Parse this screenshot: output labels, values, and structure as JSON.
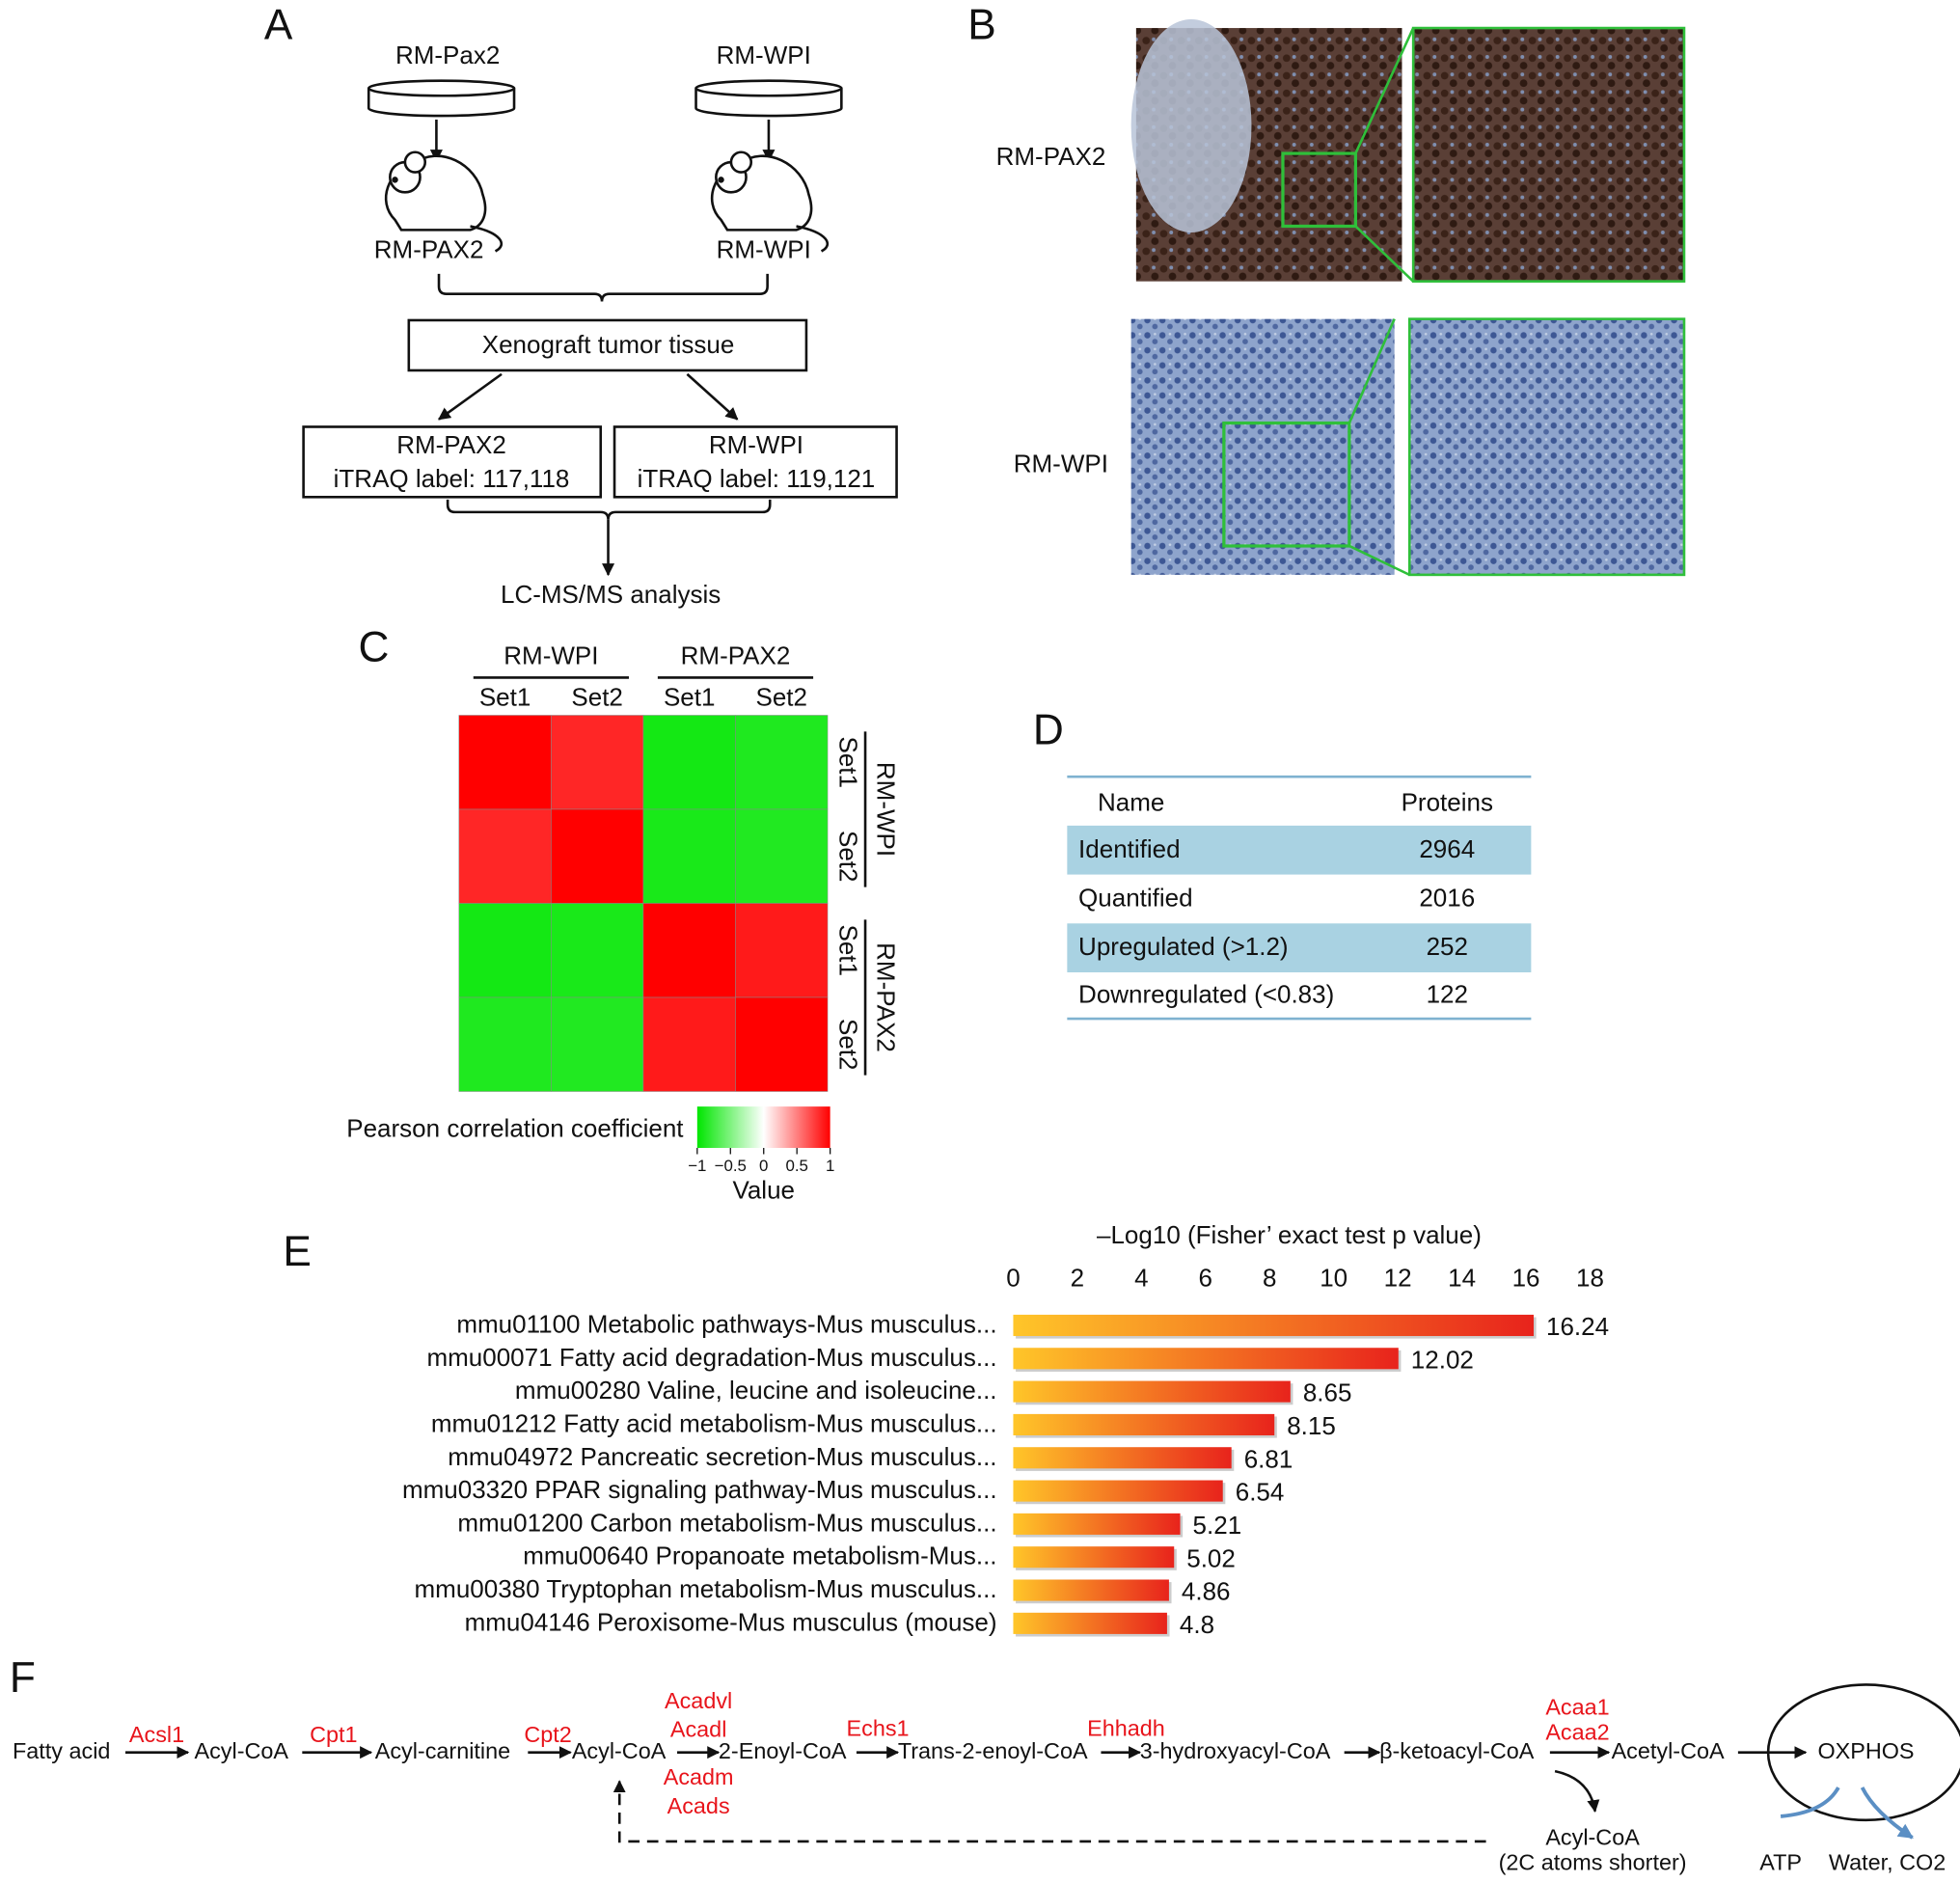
{
  "panel_labels": [
    "A",
    "B",
    "C",
    "D",
    "E",
    "F"
  ],
  "panel_a": {
    "top_labels": [
      "RM-Pax2",
      "RM-WPI"
    ],
    "mouse_labels": [
      "RM-PAX2",
      "RM-WPI"
    ],
    "merge_box": "Xenograft tumor tissue",
    "label_boxes": [
      {
        "name": "RM-PAX2",
        "label": "iTRAQ label: 117,118"
      },
      {
        "name": "RM-WPI",
        "label": "iTRAQ label: 119,121"
      }
    ],
    "result": "LC-MS/MS analysis"
  },
  "panel_b": {
    "row_labels": [
      "RM-PAX2",
      "RM-WPI"
    ]
  },
  "table": {
    "header": [
      "Name",
      "Proteins"
    ],
    "rows": [
      [
        "Identified",
        2964
      ],
      [
        "Quantified",
        2016
      ],
      [
        "Upregulated (>1.2)",
        252
      ],
      [
        "Downregulated (<0.83)",
        122
      ]
    ]
  },
  "pathway": {
    "nodes": [
      "Fatty acid",
      "Acyl-CoA",
      "Acyl-carnitine",
      "Acyl-CoA",
      "2-Enoyl-CoA",
      "Trans-2-enoyl-CoA",
      "3-hydroxyacyl-CoA",
      "β-ketoacyl-CoA",
      "Acetyl-CoA"
    ],
    "enzymes": [
      [
        "Acsl1"
      ],
      [
        "Cpt1"
      ],
      [
        "Cpt2"
      ],
      [
        "Acadvl",
        "Acadl",
        "Acadm",
        "Acads"
      ],
      [
        "Echs1"
      ],
      [],
      [
        "Ehhadh"
      ],
      [],
      [
        "Acaa1",
        "Acaa2"
      ]
    ],
    "cycle": "OXPHOS",
    "branch": [
      "Acyl-CoA",
      "(2C atoms shorter)"
    ],
    "products": [
      "ATP",
      "Water, CO2"
    ]
  },
  "chart_data": [
    {
      "type": "heatmap",
      "x_groups": [
        "RM-WPI",
        "RM-PAX2"
      ],
      "categories": [
        "Set1",
        "Set2",
        "Set1",
        "Set2"
      ],
      "y_groups": [
        "RM-WPI",
        "RM-PAX2"
      ],
      "y_categories": [
        "Set1",
        "Set2",
        "Set1",
        "Set2"
      ],
      "values": [
        [
          1,
          0.85,
          -0.92,
          -0.88
        ],
        [
          0.85,
          1,
          -0.9,
          -0.87
        ],
        [
          -0.92,
          -0.9,
          1,
          0.9
        ],
        [
          -0.88,
          -0.87,
          0.9,
          1
        ]
      ],
      "colors": [
        "#00e600",
        "#ffffff",
        "#ff0000"
      ],
      "colorbar_label": "Pearson correlation coefficient",
      "colorbar_title": "Value",
      "clim": [
        -1,
        1
      ],
      "cticks": [
        {
          "value": -1,
          "label": "−1"
        },
        {
          "value": -0.5,
          "label": "−0.5"
        },
        0,
        0.5,
        1
      ]
    },
    {
      "type": "hbar",
      "title": "–Log10 (Fisher’ exact test p value)",
      "categories": [
        "mmu01100 Metabolic pathways-Mus musculus...",
        "mmu00071 Fatty acid degradation-Mus musculus...",
        "mmu00280 Valine, leucine and isoleucine...",
        "mmu01212 Fatty acid metabolism-Mus musculus...",
        "mmu04972 Pancreatic secretion-Mus musculus...",
        "mmu03320 PPAR signaling pathway-Mus musculus...",
        "mmu01200 Carbon metabolism-Mus musculus...",
        "mmu00640 Propanoate metabolism-Mus...",
        "mmu00380 Tryptophan metabolism-Mus musculus...",
        "mmu04146 Peroxisome-Mus musculus (mouse)"
      ],
      "values": [
        16.24,
        12.02,
        8.65,
        8.15,
        6.81,
        6.54,
        5.21,
        5.02,
        4.86,
        4.8
      ],
      "gradient": [
        "#ffc629",
        "#e8231c"
      ],
      "xlim": [
        0,
        18
      ],
      "xticks": [
        0,
        2,
        4,
        6,
        8,
        10,
        12,
        14,
        16,
        18
      ]
    }
  ]
}
